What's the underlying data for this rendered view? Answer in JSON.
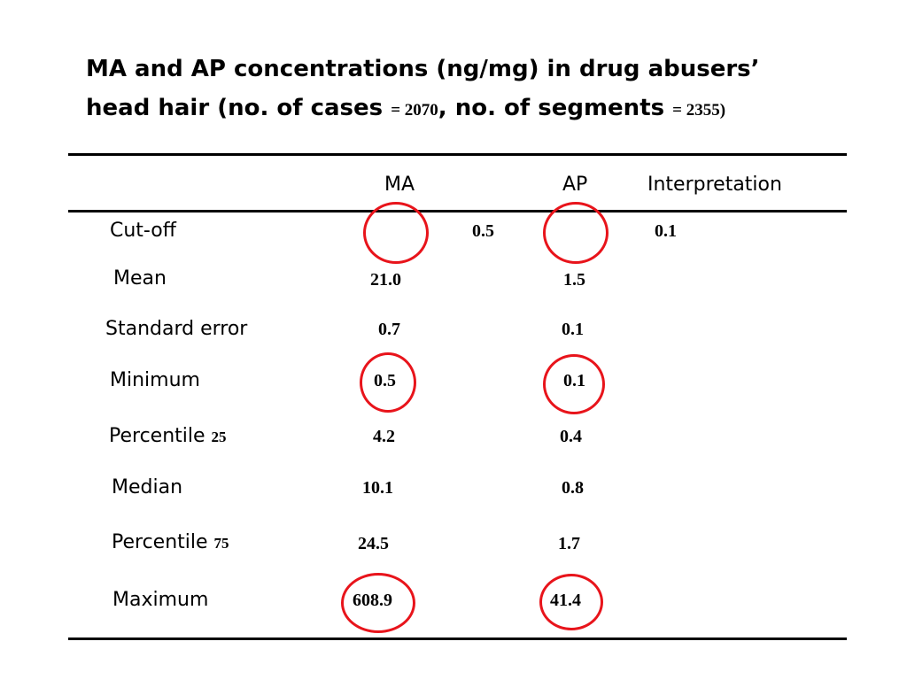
{
  "title": {
    "line1": "MA and AP concentrations (ng/mg) in drug abusers’",
    "line2_prefix": "head hair (no. of cases ",
    "cases_value": "= 2070",
    "line2_mid": ", no. of segments ",
    "segments_value": "= 2355)"
  },
  "table": {
    "headers": {
      "ma": "MA",
      "ap": "AP",
      "interpretation": "Interpretation"
    },
    "rows": [
      {
        "label": "Cut-off",
        "sub": "",
        "ma": "0.5",
        "ap": "0.1"
      },
      {
        "label": "Mean",
        "sub": "",
        "ma": "21.0",
        "ap": "1.5"
      },
      {
        "label": "Standard error",
        "sub": "",
        "ma": "0.7",
        "ap": "0.1"
      },
      {
        "label": "Minimum",
        "sub": "",
        "ma": "0.5",
        "ap": "0.1"
      },
      {
        "label": "Percentile ",
        "sub": "25",
        "ma": "4.2",
        "ap": "0.4"
      },
      {
        "label": "Median",
        "sub": "",
        "ma": "10.1",
        "ap": "0.8"
      },
      {
        "label": "Percentile ",
        "sub": "75",
        "ma": "24.5",
        "ap": "1.7"
      },
      {
        "label": "Maximum",
        "sub": "",
        "ma": "608.9",
        "ap": "41.4"
      }
    ]
  },
  "colors": {
    "highlight_ring": "#e8141b",
    "text": "#000000"
  }
}
